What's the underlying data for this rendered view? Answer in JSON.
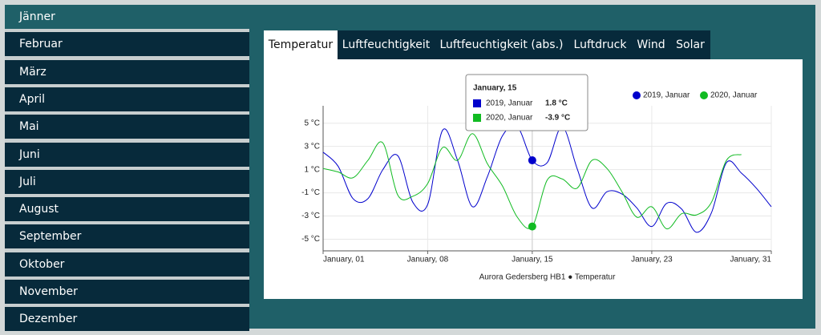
{
  "sidebar": {
    "months": [
      "Jänner",
      "Februar",
      "März",
      "April",
      "Mai",
      "Juni",
      "Juli",
      "August",
      "September",
      "Oktober",
      "November",
      "Dezember"
    ]
  },
  "tabs": [
    "Temperatur",
    "Luftfeuchtigkeit",
    "Luftfeuchtigkeit (abs.)",
    "Luftdruck",
    "Wind",
    "Solar"
  ],
  "chart_data": {
    "type": "line",
    "x_label": "Aurora Gedersberg HB1 ● Temperatur",
    "x": [
      1,
      2,
      3,
      4,
      5,
      6,
      7,
      8,
      9,
      10,
      11,
      12,
      13,
      14,
      15,
      16,
      17,
      18,
      19,
      20,
      21,
      22,
      23,
      24,
      25,
      26,
      27,
      28,
      29,
      30,
      31
    ],
    "series": [
      {
        "name": "2019, Januar",
        "color": "#0000cc",
        "values": [
          2.5,
          1.3,
          -1.5,
          -1.5,
          1.0,
          2.2,
          -1.8,
          -2.0,
          4.4,
          1.8,
          -2.2,
          0.4,
          3.9,
          4.7,
          1.8,
          1.6,
          4.7,
          1.1,
          -2.3,
          -0.9,
          -1.1,
          -2.3,
          -3.9,
          -1.9,
          -2.4,
          -4.4,
          -2.7,
          1.6,
          0.7,
          -0.6,
          -2.2
        ]
      },
      {
        "name": "2020, Januar",
        "color": "#11bb22",
        "values": [
          1.1,
          0.8,
          0.3,
          1.8,
          3.3,
          -1.2,
          -1.3,
          -0.2,
          2.9,
          1.8,
          4.1,
          1.5,
          -0.4,
          -3.1,
          -3.9,
          0.1,
          0.2,
          -0.6,
          1.8,
          1.1,
          -0.9,
          -3.1,
          -2.2,
          -4.1,
          -2.8,
          -2.9,
          -1.8,
          1.8,
          2.3,
          null,
          null
        ]
      }
    ],
    "xlim": [
      1,
      31
    ],
    "xticks": [
      {
        "value": 1,
        "label": "January, 01"
      },
      {
        "value": 8,
        "label": "January, 08"
      },
      {
        "value": 15,
        "label": "January, 15"
      },
      {
        "value": 23,
        "label": "January, 23"
      },
      {
        "value": 31,
        "label": "January, 31"
      }
    ],
    "ylim": [
      -6,
      6.5
    ],
    "yticks": [
      {
        "value": -5,
        "label": "-5 °C"
      },
      {
        "value": -3,
        "label": "-3 °C"
      },
      {
        "value": -1,
        "label": "-1 °C"
      },
      {
        "value": 1,
        "label": "1 °C"
      },
      {
        "value": 3,
        "label": "3 °C"
      },
      {
        "value": 5,
        "label": "5 °C"
      }
    ],
    "grid": true,
    "legend": "top-right",
    "tooltip": {
      "x": 15,
      "label": "January, 15",
      "value_labels": [
        "1.8 °C",
        "-3.9 °C"
      ]
    }
  }
}
